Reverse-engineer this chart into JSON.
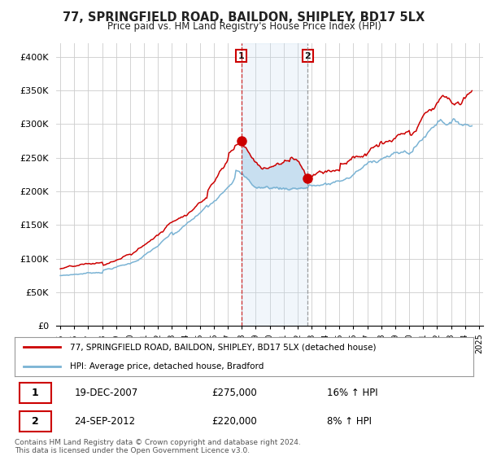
{
  "title": "77, SPRINGFIELD ROAD, BAILDON, SHIPLEY, BD17 5LX",
  "subtitle": "Price paid vs. HM Land Registry's House Price Index (HPI)",
  "ylim": [
    0,
    420000
  ],
  "yticks": [
    0,
    50000,
    100000,
    150000,
    200000,
    250000,
    300000,
    350000,
    400000
  ],
  "ytick_labels": [
    "£0",
    "£50K",
    "£100K",
    "£150K",
    "£200K",
    "£250K",
    "£300K",
    "£350K",
    "£400K"
  ],
  "hpi_color": "#7ab3d4",
  "price_color": "#cc0000",
  "marker1_date": 2007.96,
  "marker1_price": 275000,
  "marker2_date": 2012.73,
  "marker2_price": 220000,
  "legend_line1": "77, SPRINGFIELD ROAD, BAILDON, SHIPLEY, BD17 5LX (detached house)",
  "legend_line2": "HPI: Average price, detached house, Bradford",
  "marker1_text": "19-DEC-2007",
  "marker1_value": "£275,000",
  "marker1_hpi": "16% ↑ HPI",
  "marker2_text": "24-SEP-2012",
  "marker2_value": "£220,000",
  "marker2_hpi": "8% ↑ HPI",
  "footer": "Contains HM Land Registry data © Crown copyright and database right 2024.\nThis data is licensed under the Open Government Licence v3.0.",
  "shade_color": "#c8dff0",
  "background_color": "#ffffff",
  "grid_color": "#cccccc"
}
